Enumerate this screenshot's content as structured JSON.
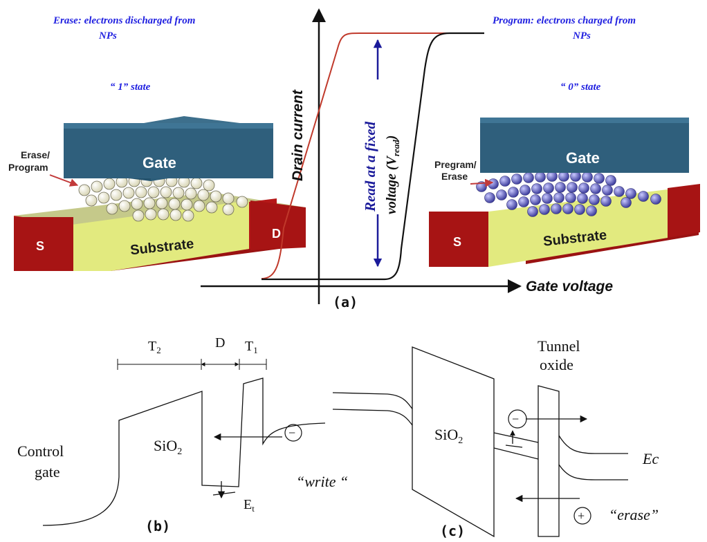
{
  "panel_a": {
    "left_title_line1": "Erase: electrons discharged from",
    "left_title_line2": "NPs",
    "left_state": "“ 1” state",
    "right_title_line1": "Program: electrons charged from",
    "right_title_line2": "NPs",
    "right_state": "“ 0” state",
    "left_device": {
      "gate": "Gate",
      "substrate": "Substrate",
      "source": "S",
      "drain": "D",
      "arrow_label_line1": "Erase/",
      "arrow_label_line2": "Program"
    },
    "right_device": {
      "gate": "Gate",
      "substrate": "Substrate",
      "source": "S",
      "arrow_label_line1": "Pregram/",
      "arrow_label_line2": "Erase"
    },
    "y_axis_label": "Drain current",
    "x_axis_label": "Gate voltage",
    "read_label_line1": "Read at a fixed",
    "read_label_line2": "voltage (V",
    "read_label_sub": "read",
    "read_label_close": ")",
    "panel_label": "(a)"
  },
  "panel_b": {
    "t2": "T",
    "t2_sub": "2",
    "d": "D",
    "t1": "T",
    "t1_sub": "1",
    "control_gate_line1": "Control",
    "control_gate_line2": "gate",
    "sio2": "SiO",
    "sio2_sub": "2",
    "et": "E",
    "et_sub": "t",
    "write": "“write “",
    "minus": "−",
    "panel_label": "(b)"
  },
  "panel_c": {
    "tunnel_line1": "Tunnel",
    "tunnel_line2": "oxide",
    "sio2": "SiO",
    "sio2_sub": "2",
    "ec": "Ec",
    "erase": "“erase”",
    "minus": "−",
    "plus": "+",
    "panel_label": "(c)"
  },
  "colors": {
    "gate": "#2e5f7a",
    "substrate": "#e8ee88",
    "contact": "#a11414",
    "np_empty": "#f3f1dc",
    "np_charged": "#6e6fc8",
    "label_blue": "#1f1fe0",
    "curve_red": "#c0392b"
  }
}
